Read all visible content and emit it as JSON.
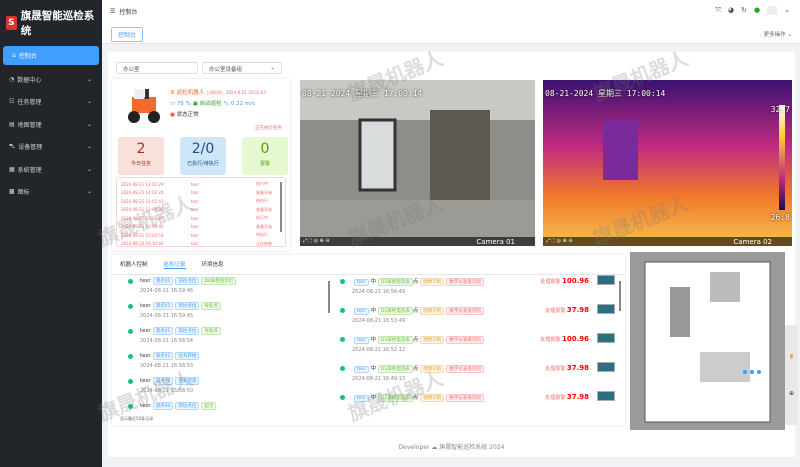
{
  "app": {
    "title": "旗晟智能巡检系统",
    "logo_letter": "S"
  },
  "sidebar": {
    "items": [
      {
        "label": "控制台",
        "icon": "home-icon"
      },
      {
        "label": "数据中心",
        "icon": "pie-icon"
      },
      {
        "label": "任务管理",
        "icon": "list-icon"
      },
      {
        "label": "地图管理",
        "icon": "map-icon"
      },
      {
        "label": "设备管理",
        "icon": "car-icon"
      },
      {
        "label": "系统管理",
        "icon": "grid-icon"
      },
      {
        "label": "图标",
        "icon": "qrcode-icon"
      }
    ]
  },
  "header": {
    "breadcrumb": "控制台",
    "tab": "控制台",
    "more_ops": "更多操作"
  },
  "selects": {
    "area": "办公室",
    "group": "办公室设备组"
  },
  "robot": {
    "name": "巡检机器人",
    "online_time": "上线时间：2024-8-21 10:01:03",
    "battery": "75 %",
    "mode": "自动巡检",
    "speed": "0.22 m/s",
    "status": "状态正常",
    "task_link": "正在执行任务"
  },
  "stats": [
    {
      "value": "2",
      "label": "今日任务",
      "color": "#f9e0da"
    },
    {
      "value": "2/0",
      "label": "已执行/待执行",
      "color": "#cfe6f8"
    },
    {
      "value": "0",
      "label": "报警",
      "color": "#e6f8cf"
    }
  ],
  "task_log": [
    [
      "2024-08-21 14:02:29",
      "tesr",
      "执行中"
    ],
    [
      "2024-08-21 14:02:26",
      "tesr",
      "准备开始"
    ],
    [
      "2024-08-21 14:01:43",
      "tesr",
      "待执行"
    ],
    [
      "2024-08-21 12:00:00",
      "tesr",
      "准备开始"
    ],
    [
      "2024-08-21 10:04:47",
      "tesr",
      "执行中"
    ],
    [
      "2024-08-21 10:04:46",
      "tesr",
      "准备开始"
    ],
    [
      "2024-08-21 10:03:54",
      "tesr",
      "待执行"
    ],
    [
      "2024-08-20 16:10:44",
      "tesr",
      "正在结束"
    ]
  ],
  "cameras": [
    {
      "datetime": "08-21-2024 星期三 17:00:14",
      "name": "Camera 01"
    },
    {
      "datetime": "08-21-2024 星期三 17:00:14",
      "name": "Camera 02",
      "temp_max": "32.7",
      "temp_min": "26.8"
    }
  ],
  "panel_tabs": [
    "机器人控制",
    "巡检记录",
    "环境信息"
  ],
  "patrol_records": [
    {
      "user": "tesr",
      "tags": [
        "测点41",
        "前往点位",
        "D4屏柜指示灯"
      ],
      "time": "2024-08-21 16:59:46"
    },
    {
      "user": "tesr",
      "tags": [
        "测点41",
        "到达点位",
        "导航点"
      ],
      "time": "2024-08-21 16:59:45"
    },
    {
      "user": "tesr",
      "tags": [
        "测点41",
        "前往点位",
        "导航点"
      ],
      "time": "2024-08-21 16:58:54"
    },
    {
      "user": "tesr",
      "tags": [
        "测点41",
        "任务开始"
      ],
      "time": "2024-08-21 16:58:53"
    },
    {
      "user": "tesr",
      "tags": [
        "测点40",
        "任务结束"
      ],
      "time": "2024-08-21 16:58:50"
    },
    {
      "user": "tesr",
      "tags": [
        "测点40",
        "到达点位",
        "起点"
      ],
      "time": ""
    }
  ],
  "patrol_footer": "显示最近50条记录",
  "alarm_records": [
    {
      "user": "tesr",
      "level": "中",
      "point": "D3屏柜电流表",
      "suffix": "点",
      "type": "图像识别",
      "method": "数字仪表盘识别",
      "action": "处理报警",
      "value": "100.96",
      "time": "2024-08-21 16:56:49"
    },
    {
      "user": "tesr",
      "level": "中",
      "point": "D1屏柜电流表",
      "suffix": "点",
      "type": "图像识别",
      "method": "数字仪表盘识别",
      "action": "处理报警",
      "value": "37.98",
      "time": "2024-08-21 16:53:49"
    },
    {
      "user": "tesr",
      "level": "中",
      "point": "D3屏柜电流表",
      "suffix": "点",
      "type": "图像识别",
      "method": "数字仪表盘识别",
      "action": "处理报警",
      "value": "100.96",
      "time": "2024-08-21 16:52:12"
    },
    {
      "user": "tesr",
      "level": "中",
      "point": "D1屏柜电流表",
      "suffix": "点",
      "type": "图像识别",
      "method": "数字仪表盘识别",
      "action": "处理报警",
      "value": "37.98",
      "time": "2024-08-21 16:49:13"
    },
    {
      "user": "tesr",
      "level": "中",
      "point": "D1屏柜电流表",
      "suffix": "点",
      "type": "图像识别",
      "method": "数字仪表盘识别",
      "action": "处理报警",
      "value": "37.98",
      "time": ""
    }
  ],
  "footer": "Developer ☁ 旗晟智能巡检系统 2024",
  "watermark": "旗晟机器人"
}
